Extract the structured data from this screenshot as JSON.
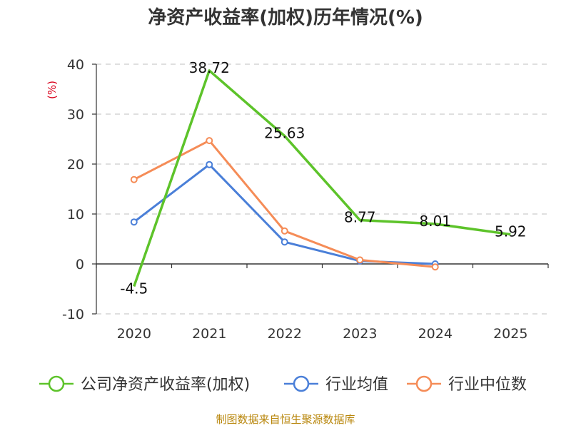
{
  "chart_data": {
    "type": "line",
    "title": "净资产收益率(加权)历年情况(%)",
    "ylabel": "(%)",
    "xlabel": "",
    "categories": [
      "2020",
      "2021",
      "2022",
      "2023",
      "2024",
      "2025"
    ],
    "ylim": [
      -10,
      40
    ],
    "yticks": [
      -10,
      0,
      10,
      20,
      30,
      40
    ],
    "grid": true,
    "legend_position": "bottom",
    "series": [
      {
        "name": "公司净资产收益率(加权)",
        "color": "#5dc32a",
        "values": [
          -4.5,
          38.72,
          25.63,
          8.77,
          8.01,
          5.92
        ],
        "labels": [
          "-4.5",
          "38.72",
          "25.63",
          "8.77",
          "8.01",
          "5.92"
        ]
      },
      {
        "name": "行业均值",
        "color": "#4a7fd8",
        "values": [
          8.4,
          19.9,
          4.4,
          0.6,
          0.0,
          null
        ]
      },
      {
        "name": "行业中位数",
        "color": "#f58c57",
        "values": [
          16.9,
          24.7,
          6.6,
          0.8,
          -0.6,
          null
        ]
      }
    ],
    "source": "制图数据来自恒生聚源数据库"
  }
}
